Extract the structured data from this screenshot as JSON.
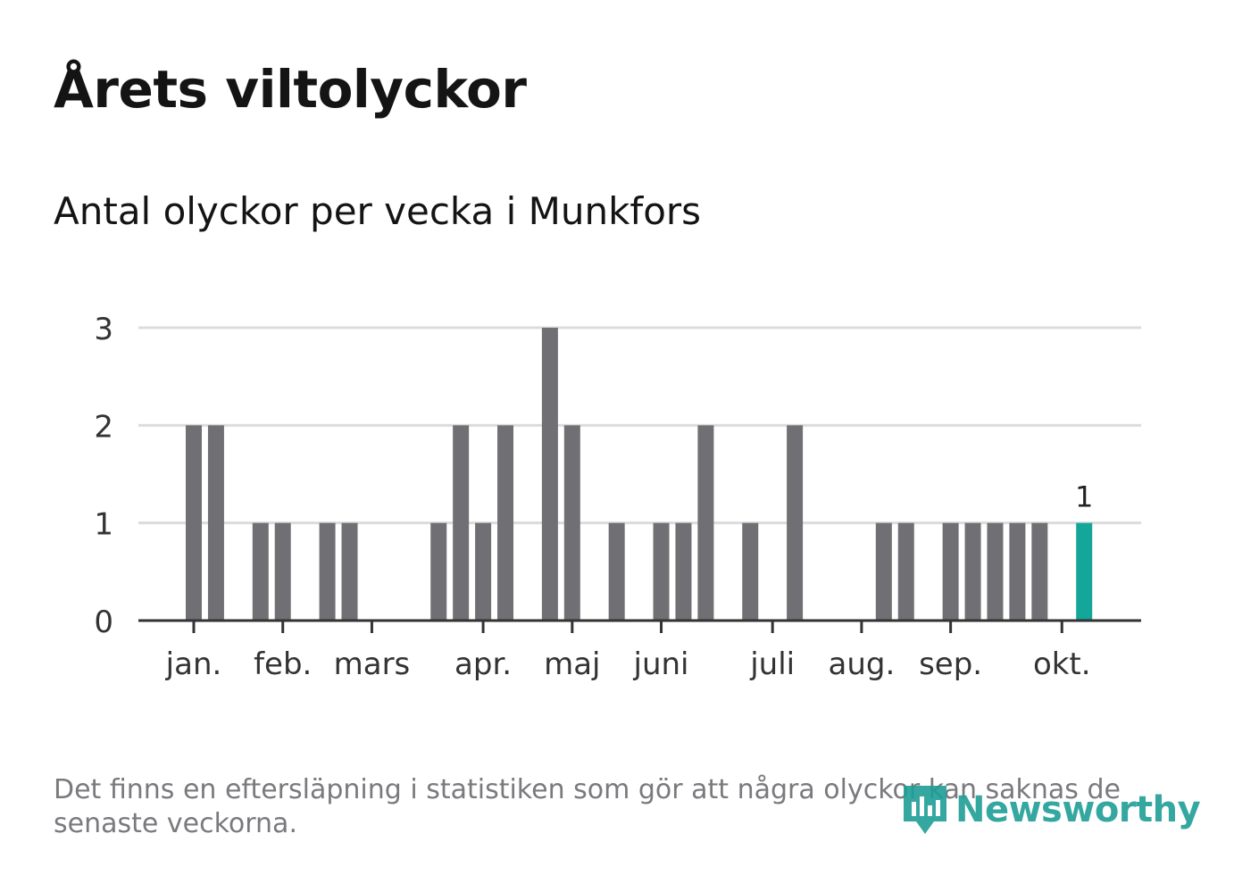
{
  "header": {
    "title": "Årets viltolyckor",
    "subtitle": "Antal olyckor per vecka i Munkfors"
  },
  "footer": {
    "note": "Det finns en eftersläpning i statistiken som gör att några olyckor kan saknas de senaste veckorna.",
    "brand": "Newsworthy"
  },
  "colors": {
    "bar": "#707074",
    "highlight": "#13a699",
    "grid": "#dcdcdc",
    "axis": "#333333",
    "text": "#333333"
  },
  "chart_data": {
    "type": "bar",
    "title": "Antal olyckor per vecka i Munkfors",
    "xlabel": "",
    "ylabel": "",
    "ylim": [
      0,
      3
    ],
    "yticks": [
      0,
      1,
      2,
      3
    ],
    "weeks": [
      1,
      2,
      3,
      4,
      5,
      6,
      7,
      8,
      9,
      10,
      11,
      12,
      13,
      14,
      15,
      16,
      17,
      18,
      19,
      20,
      21,
      22,
      23,
      24,
      25,
      26,
      27,
      28,
      29,
      30,
      31,
      32,
      33,
      34,
      35,
      36,
      37,
      38,
      39,
      40,
      41
    ],
    "values": [
      2,
      2,
      0,
      1,
      1,
      0,
      1,
      1,
      0,
      0,
      0,
      1,
      2,
      1,
      2,
      0,
      3,
      2,
      0,
      1,
      0,
      1,
      1,
      2,
      0,
      1,
      0,
      2,
      0,
      0,
      0,
      1,
      1,
      0,
      1,
      1,
      1,
      1,
      1,
      0,
      1
    ],
    "highlight_index": 40,
    "highlight_label": "1",
    "month_ticks": [
      {
        "label": "jan.",
        "week": 1.5
      },
      {
        "label": "feb.",
        "week": 5.5
      },
      {
        "label": "mars",
        "week": 9.5
      },
      {
        "label": "apr.",
        "week": 14.5
      },
      {
        "label": "maj",
        "week": 18.5
      },
      {
        "label": "juni",
        "week": 22.5
      },
      {
        "label": "juli",
        "week": 27.5
      },
      {
        "label": "aug.",
        "week": 31.5
      },
      {
        "label": "sep.",
        "week": 35.5
      },
      {
        "label": "okt.",
        "week": 40.5
      }
    ],
    "grid": true
  }
}
